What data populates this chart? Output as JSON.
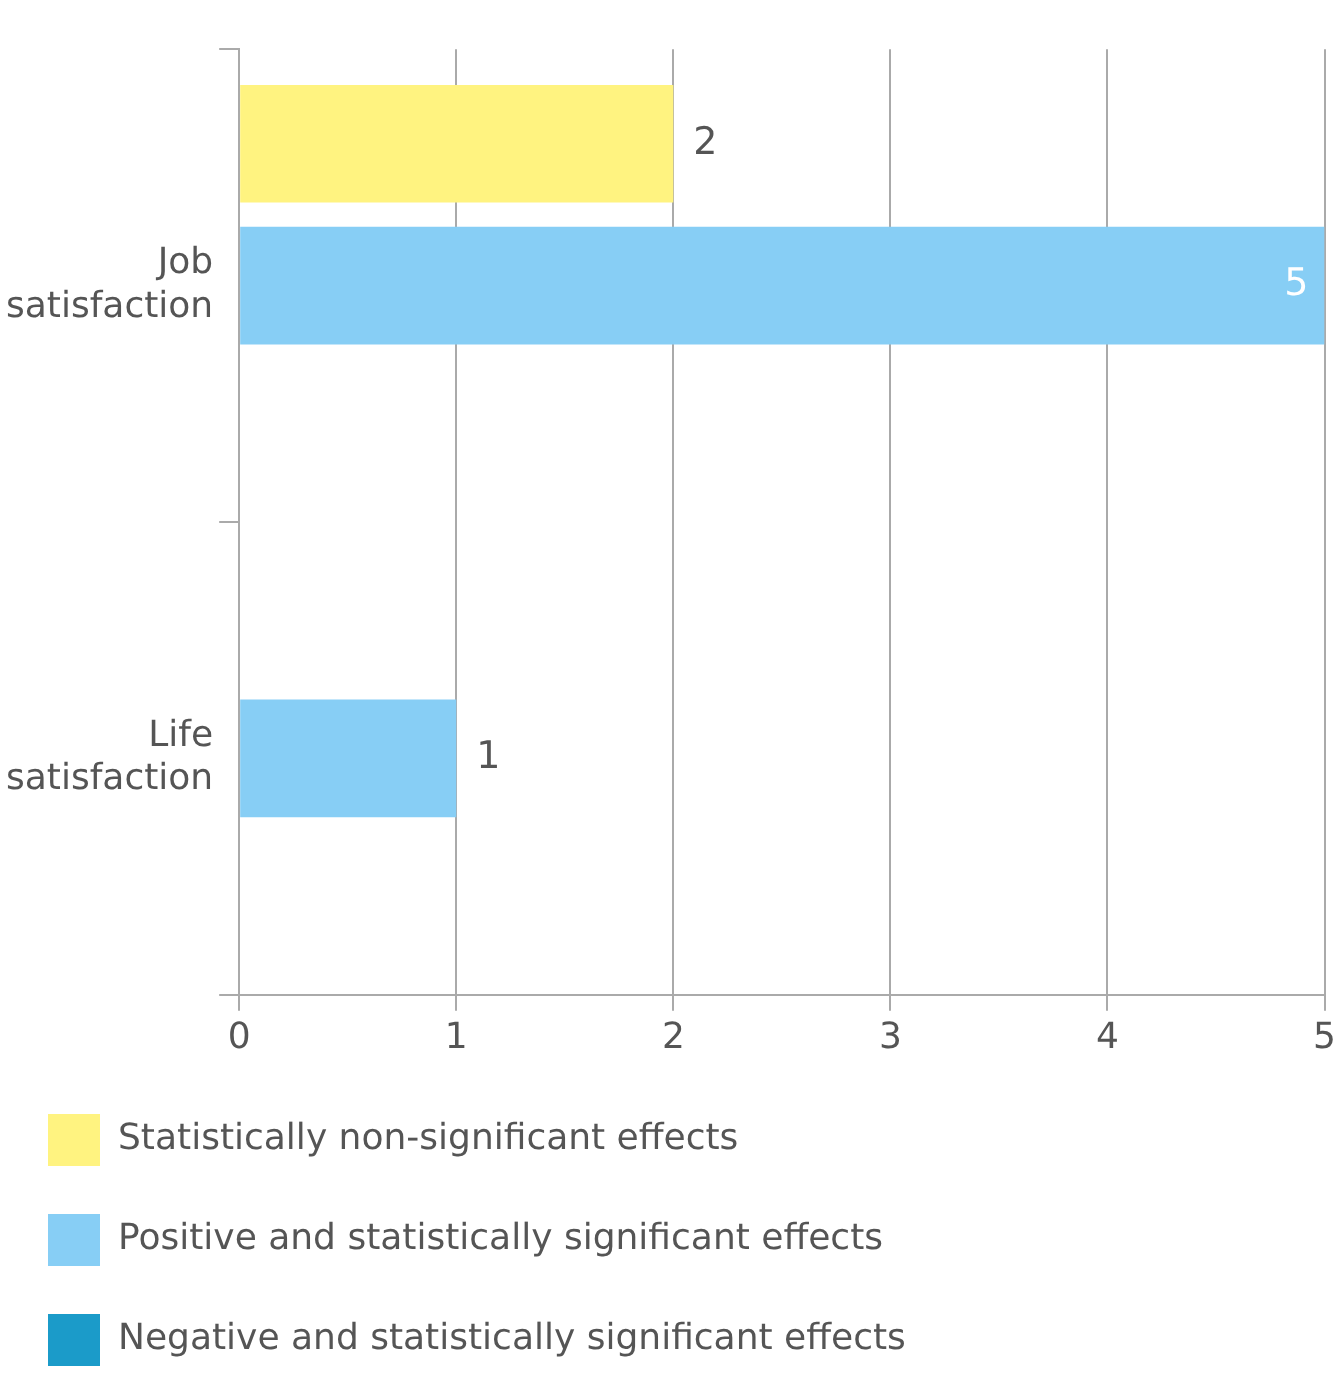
{
  "chart_data": {
    "type": "bar",
    "orientation": "horizontal",
    "categories": [
      "Job satisfaction",
      "Life satisfaction"
    ],
    "series": [
      {
        "name": "Statistically non-significant effects",
        "color": "#fff380",
        "values": [
          2,
          null
        ]
      },
      {
        "name": "Positive and statistically significant effects",
        "color": "#87cef5",
        "values": [
          5,
          1
        ]
      },
      {
        "name": "Negative and statistically significant effects",
        "color": "#1b9bc9",
        "values": [
          null,
          null
        ]
      }
    ],
    "xlim": [
      0,
      5
    ],
    "xticks": [
      0,
      1,
      2,
      3,
      4,
      5
    ],
    "grid": "x",
    "legend": "bottom",
    "data_labels": true
  }
}
